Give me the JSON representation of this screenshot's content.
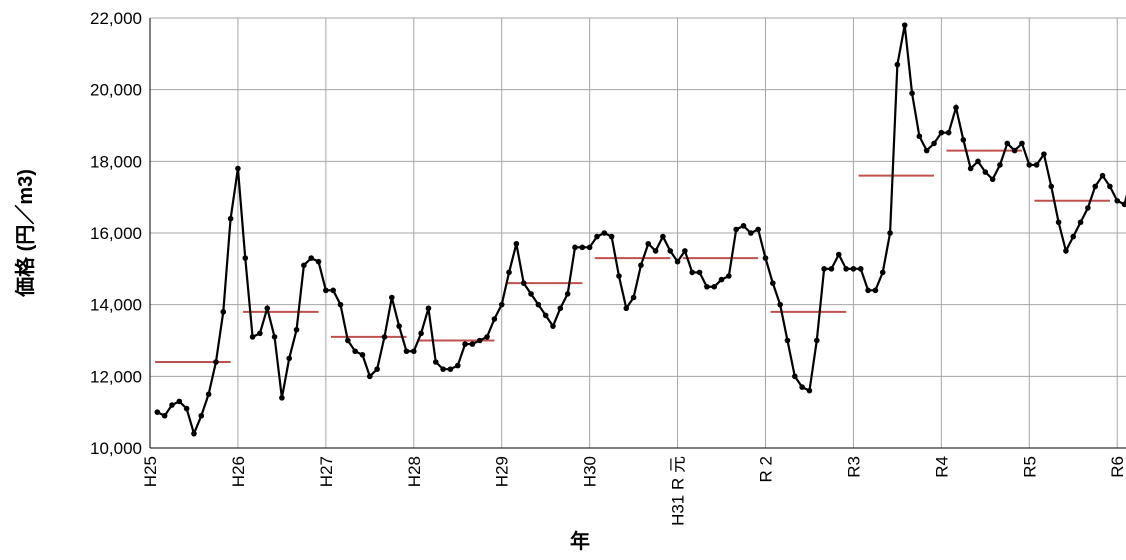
{
  "chart_data": {
    "type": "line",
    "xlabel": "年",
    "ylabel": "価格 (円／m3)",
    "x": [
      1,
      2,
      3,
      4,
      5,
      6,
      7,
      8,
      9,
      10,
      11,
      12,
      13,
      14,
      15,
      16,
      17,
      18,
      19,
      20,
      21,
      22,
      23,
      24,
      25,
      26,
      27,
      28,
      29,
      30,
      31,
      32,
      33,
      34,
      35,
      36,
      37,
      38,
      39,
      40,
      41,
      42,
      43,
      44,
      45,
      46,
      47,
      48,
      49,
      50,
      51,
      52,
      53,
      54,
      55,
      56,
      57,
      58,
      59,
      60,
      61,
      62,
      63,
      64,
      65,
      66,
      67,
      68,
      69,
      70,
      71,
      72,
      73,
      74,
      75,
      76,
      77,
      78,
      79,
      80,
      81,
      82,
      83,
      84,
      85,
      86,
      87,
      88,
      89,
      90,
      91,
      92,
      93,
      94,
      95,
      96,
      97,
      98,
      99,
      100,
      101,
      102,
      103,
      104,
      105,
      106,
      107,
      108,
      109,
      110,
      111,
      112,
      113,
      114,
      115,
      116,
      117,
      118,
      119,
      120,
      121,
      122,
      123,
      124,
      125,
      126,
      127,
      128,
      129,
      130,
      131,
      132,
      133,
      134
    ],
    "series": [
      {
        "color": "#000000",
        "values": [
          11000,
          10900,
          11200,
          11300,
          11100,
          10400,
          10900,
          11500,
          12400,
          13800,
          16400,
          17800,
          15300,
          13100,
          13200,
          13900,
          13100,
          11400,
          12500,
          13300,
          15100,
          15300,
          15200,
          14400,
          14400,
          14000,
          13000,
          12700,
          12600,
          12000,
          12200,
          13100,
          14200,
          13400,
          12700,
          12700,
          13200,
          13900,
          12400,
          12200,
          12200,
          12300,
          12900,
          12900,
          13000,
          13100,
          13600,
          14000,
          14900,
          15700,
          14600,
          14300,
          14000,
          13700,
          13400,
          13900,
          14300,
          15600,
          15600,
          15600,
          15900,
          16000,
          15900,
          14800,
          13900,
          14200,
          15100,
          15700,
          15500,
          15900,
          15500,
          15200,
          15500,
          14900,
          14900,
          14500,
          14500,
          14700,
          14800,
          16100,
          16200,
          16000,
          16100,
          15300,
          14600,
          14000,
          13000,
          12000,
          11700,
          11600,
          13000,
          15000,
          15000,
          15400,
          15000,
          15000,
          15000,
          14400,
          14400,
          14900,
          16000,
          20700,
          21800,
          19900,
          18700,
          18300,
          18500,
          18800,
          18800,
          19500,
          18600,
          17800,
          18000,
          17700,
          17500,
          17900,
          18500,
          18300,
          18500,
          17900,
          17900,
          18200,
          17300,
          16300,
          15500,
          15900,
          16300,
          16700,
          17300,
          17600,
          17300,
          16900,
          16800,
          17600
        ]
      }
    ],
    "annual_means": {
      "color": "#c0504d",
      "values": [
        12400,
        13800,
        13100,
        13000,
        14600,
        15300,
        15300,
        13800,
        17600,
        18300,
        16900
      ]
    },
    "xlim": [
      0,
      133.2
    ],
    "xticks": [
      {
        "value": 0,
        "label": "H25"
      },
      {
        "value": 12,
        "label": "H26"
      },
      {
        "value": 24,
        "label": "H27"
      },
      {
        "value": 36,
        "label": "H28"
      },
      {
        "value": 48,
        "label": "H29"
      },
      {
        "value": 60,
        "label": "H30"
      },
      {
        "value": 72,
        "label": "H31 R 元"
      },
      {
        "value": 84,
        "label": "R 2"
      },
      {
        "value": 96,
        "label": "R3"
      },
      {
        "value": 108,
        "label": "R4"
      },
      {
        "value": 120,
        "label": "R5"
      },
      {
        "value": 132,
        "label": "R6"
      }
    ],
    "ylim": [
      10000,
      22000
    ],
    "yticks": [
      {
        "value": 10000,
        "label": "10,000"
      },
      {
        "value": 12000,
        "label": "12,000"
      },
      {
        "value": 14000,
        "label": "14,000"
      },
      {
        "value": 16000,
        "label": "16,000"
      },
      {
        "value": 18000,
        "label": "18,000"
      },
      {
        "value": 20000,
        "label": "20,000"
      },
      {
        "value": 22000,
        "label": "22,000"
      }
    ],
    "grid": true
  }
}
